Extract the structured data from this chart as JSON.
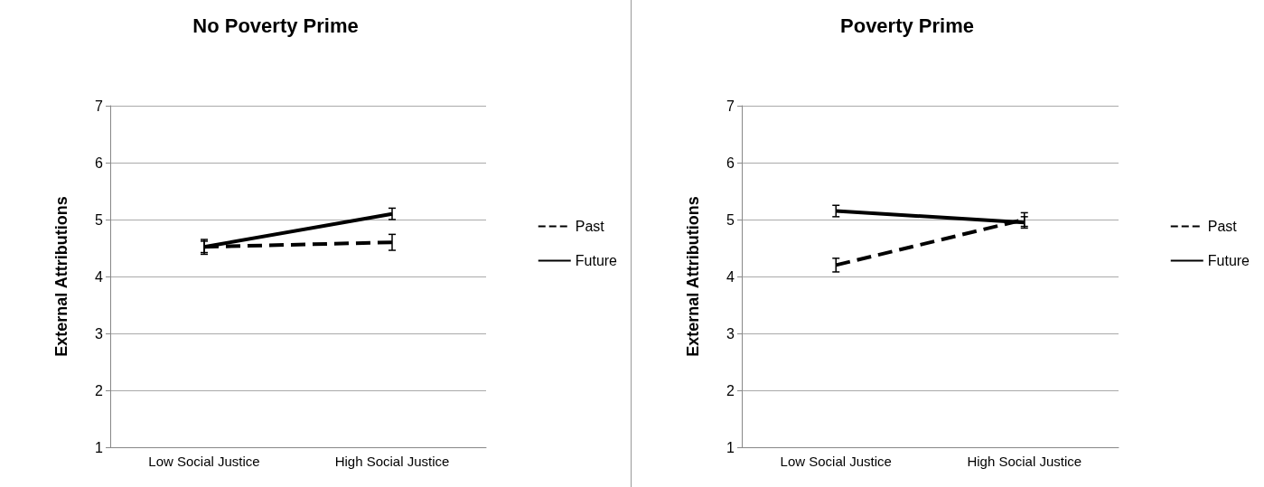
{
  "chart_data": [
    {
      "type": "line",
      "title": "No Poverty Prime",
      "ylabel": "External Attributions",
      "categories": [
        "Low Social Justice",
        "High Social Justice"
      ],
      "series": [
        {
          "name": "Past",
          "color": "#000000",
          "line_style": "dashed",
          "values": [
            4.52,
            4.6
          ],
          "errors": [
            0.13,
            0.14
          ]
        },
        {
          "name": "Future",
          "color": "#000000",
          "line_style": "solid",
          "values": [
            4.52,
            5.1
          ],
          "errors": [
            0.1,
            0.1
          ]
        }
      ],
      "ylim": [
        1,
        7
      ],
      "yticks": [
        1,
        2,
        3,
        4,
        5,
        6,
        7
      ],
      "grid": "y",
      "legend": "right",
      "marker": "none"
    },
    {
      "type": "line",
      "title": "Poverty Prime",
      "ylabel": "External Attributions",
      "categories": [
        "Low Social Justice",
        "High Social Justice"
      ],
      "series": [
        {
          "name": "Past",
          "color": "#000000",
          "line_style": "dashed",
          "values": [
            4.2,
            5.0
          ],
          "errors": [
            0.12,
            0.12
          ]
        },
        {
          "name": "Future",
          "color": "#000000",
          "line_style": "solid",
          "values": [
            5.15,
            4.95
          ],
          "errors": [
            0.1,
            0.1
          ]
        }
      ],
      "ylim": [
        1,
        7
      ],
      "yticks": [
        1,
        2,
        3,
        4,
        5,
        6,
        7
      ],
      "grid": "y",
      "legend": "right",
      "marker": "none"
    }
  ]
}
